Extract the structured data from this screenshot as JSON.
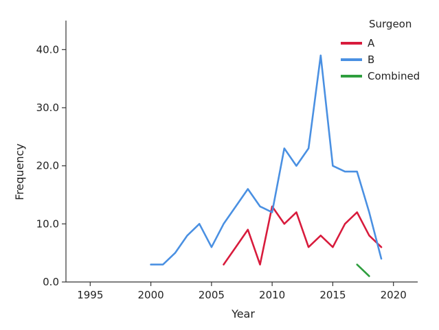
{
  "chart_data": {
    "type": "line",
    "xlabel": "Year",
    "ylabel": "Frequency",
    "xlim": [
      1993,
      2022
    ],
    "ylim": [
      0,
      45
    ],
    "xticks": [
      1995,
      2000,
      2005,
      2010,
      2015,
      2020
    ],
    "xtick_labels": [
      "1995",
      "2000",
      "2005",
      "2010",
      "2015",
      "2020"
    ],
    "yticks": [
      0,
      10,
      20,
      30,
      40
    ],
    "ytick_labels": [
      "0.0",
      "10.0",
      "20.0",
      "30.0",
      "40.0"
    ],
    "grid": false,
    "legend": {
      "title": "Surgeon",
      "position": "top-right"
    },
    "series": [
      {
        "name": "A",
        "color": "#d81b3c",
        "x": [
          2006,
          2007,
          2008,
          2009,
          2010,
          2011,
          2012,
          2013,
          2014,
          2015,
          2016,
          2017,
          2018,
          2019
        ],
        "values": [
          3,
          6,
          9,
          3,
          13,
          10,
          12,
          6,
          8,
          6,
          10,
          12,
          8,
          6
        ]
      },
      {
        "name": "B",
        "color": "#4a90e2",
        "x": [
          2000,
          2001,
          2002,
          2003,
          2004,
          2005,
          2006,
          2007,
          2008,
          2009,
          2010,
          2011,
          2012,
          2013,
          2014,
          2015,
          2016,
          2017,
          2018,
          2019
        ],
        "values": [
          3,
          3,
          5,
          8,
          10,
          6,
          10,
          13,
          16,
          13,
          12,
          23,
          20,
          23,
          39,
          20,
          19,
          19,
          12,
          4
        ]
      },
      {
        "name": "Combined",
        "color": "#2e9e3e",
        "x": [
          2017,
          2018
        ],
        "values": [
          3,
          1
        ]
      }
    ]
  }
}
